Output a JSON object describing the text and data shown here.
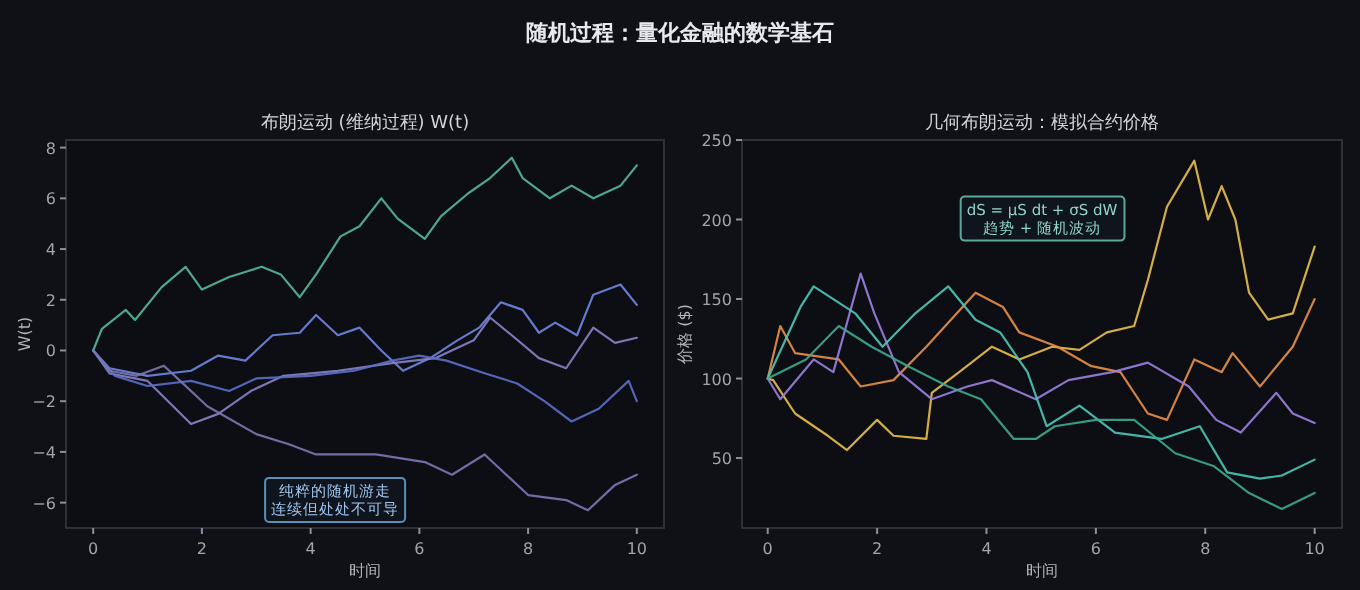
{
  "chart_data": [
    {
      "type": "line",
      "title": "布朗运动 (维纳过程) W(t)",
      "xlabel": "时间",
      "ylabel": "W(t)",
      "xlim": [
        -0.5,
        10.5
      ],
      "ylim": [
        -7,
        8.3
      ],
      "xticks": [
        0,
        2,
        4,
        6,
        8,
        10
      ],
      "yticks": [
        -6,
        -4,
        -2,
        0,
        2,
        4,
        6,
        8
      ],
      "annotations": [
        "随机过程：量化金融的数学基石",
        "纯粹的随机游走",
        "连续但处处不可导"
      ],
      "series": [
        {
          "color": "#55b89a",
          "x": [
            0,
            0.16,
            0.6,
            0.77,
            1.26,
            1.7,
            2.0,
            2.5,
            3.1,
            3.45,
            3.8,
            4.1,
            4.55,
            4.9,
            5.3,
            5.6,
            6.1,
            6.4,
            6.9,
            7.3,
            7.7,
            7.9,
            8.4,
            8.8,
            9.2,
            9.7,
            10
          ],
          "values": [
            0,
            0.85,
            1.6,
            1.2,
            2.5,
            3.3,
            2.4,
            2.9,
            3.3,
            3.0,
            2.1,
            3.0,
            4.5,
            4.9,
            6.0,
            5.2,
            4.4,
            5.3,
            6.2,
            6.8,
            7.6,
            6.8,
            6.0,
            6.5,
            6.0,
            6.5,
            7.3
          ]
        },
        {
          "color": "#6f86e0",
          "x": [
            0,
            0.3,
            1.0,
            1.8,
            2.3,
            2.8,
            3.3,
            3.8,
            4.1,
            4.5,
            4.9,
            5.3,
            5.7,
            6.2,
            6.7,
            7.1,
            7.5,
            7.9,
            8.2,
            8.5,
            8.9,
            9.2,
            9.7,
            10
          ],
          "values": [
            0,
            -0.7,
            -1.0,
            -0.8,
            -0.2,
            -0.4,
            0.6,
            0.7,
            1.4,
            0.6,
            0.9,
            0,
            -0.8,
            -0.3,
            0.4,
            0.9,
            1.9,
            1.6,
            0.7,
            1.1,
            0.6,
            2.2,
            2.6,
            1.8
          ]
        },
        {
          "color": "#8a82c8",
          "x": [
            0,
            0.3,
            1.0,
            1.8,
            2.3,
            2.9,
            3.5,
            4.5,
            5.5,
            6.3,
            7.0,
            7.3,
            7.7,
            8.2,
            8.7,
            9.2,
            9.6,
            10
          ],
          "values": [
            0,
            -0.9,
            -1.2,
            -2.9,
            -2.5,
            -1.6,
            -1.0,
            -0.8,
            -0.5,
            -0.3,
            0.4,
            1.3,
            0.6,
            -0.3,
            -0.7,
            0.9,
            0.3,
            0.5
          ]
        },
        {
          "color": "#5c6fc8",
          "x": [
            0,
            0.4,
            1.0,
            1.8,
            2.5,
            3.0,
            4.0,
            4.8,
            5.5,
            6.0,
            6.5,
            7.2,
            7.8,
            8.3,
            8.8,
            9.3,
            9.85,
            10
          ],
          "values": [
            0,
            -1.0,
            -1.4,
            -1.2,
            -1.6,
            -1.1,
            -1.0,
            -0.8,
            -0.4,
            -0.2,
            -0.4,
            -0.9,
            -1.3,
            -2.0,
            -2.8,
            -2.3,
            -1.2,
            -2.0
          ]
        },
        {
          "color": "#7a78b4",
          "x": [
            0,
            0.3,
            0.8,
            1.3,
            1.6,
            2.1,
            3.0,
            3.6,
            4.1,
            5.2,
            6.1,
            6.6,
            7.2,
            8.0,
            8.7,
            9.1,
            9.6,
            10
          ],
          "values": [
            0,
            -0.8,
            -1.0,
            -0.6,
            -1.2,
            -2.2,
            -3.3,
            -3.7,
            -4.1,
            -4.1,
            -4.4,
            -4.9,
            -4.1,
            -5.7,
            -5.9,
            -6.3,
            -5.3,
            -4.9
          ]
        }
      ]
    },
    {
      "type": "line",
      "title": "几何布朗运动：模拟合约价格",
      "xlabel": "时间",
      "ylabel": "价格 ($)",
      "xlim": [
        -0.47,
        10.5
      ],
      "ylim": [
        6,
        250
      ],
      "xticks": [
        0,
        2,
        4,
        6,
        8,
        10
      ],
      "yticks": [
        50,
        100,
        150,
        200,
        250
      ],
      "annotations": [
        "dS = μS dt + σS dW\n趋势 + 随机波动"
      ],
      "series": [
        {
          "color": "#e8c04a",
          "x": [
            0,
            0.1,
            0.5,
            1.1,
            1.45,
            2.0,
            2.3,
            2.9,
            3.0,
            3.5,
            4.1,
            4.6,
            5.2,
            5.7,
            6.2,
            6.7,
            6.95,
            7.3,
            7.8,
            8.05,
            8.3,
            8.55,
            8.8,
            9.15,
            9.6,
            10
          ],
          "values": [
            100,
            99,
            78,
            64,
            55,
            74,
            64,
            62,
            91,
            104,
            120,
            112,
            120,
            118,
            129,
            133,
            162,
            208,
            237,
            200,
            221,
            200,
            154,
            137,
            141,
            183
          ]
        },
        {
          "color": "#e89048",
          "x": [
            0,
            0.23,
            0.5,
            1.3,
            1.7,
            2.3,
            2.9,
            3.8,
            4.3,
            4.6,
            5.3,
            5.9,
            6.45,
            6.95,
            7.3,
            7.8,
            8.3,
            8.5,
            9.0,
            9.6,
            10
          ],
          "values": [
            100,
            133,
            116,
            112,
            95,
            99,
            120,
            154,
            145,
            129,
            120,
            108,
            104,
            78,
            74,
            112,
            104,
            116,
            95,
            120,
            150
          ]
        },
        {
          "color": "#9b80e0",
          "x": [
            0,
            0.23,
            0.84,
            1.2,
            1.7,
            1.95,
            2.4,
            3.0,
            3.65,
            4.1,
            4.9,
            5.5,
            6.3,
            6.95,
            7.7,
            8.2,
            8.65,
            9.3,
            9.6,
            10
          ],
          "values": [
            100,
            87,
            112,
            104,
            166,
            141,
            104,
            87,
            95,
            99,
            87,
            99,
            104,
            110,
            95,
            74,
            66,
            91,
            78,
            72
          ]
        },
        {
          "color": "#4cc8b8",
          "x": [
            0,
            0.6,
            0.84,
            1.6,
            2.1,
            2.7,
            3.3,
            3.8,
            4.25,
            4.75,
            5.1,
            5.7,
            6.35,
            7.2,
            7.9,
            8.4,
            9.0,
            9.4,
            10
          ],
          "values": [
            100,
            145,
            158,
            141,
            120,
            141,
            158,
            137,
            129,
            104,
            70,
            83,
            66,
            62,
            70,
            41,
            37,
            39,
            49
          ]
        },
        {
          "color": "#3fa88e",
          "x": [
            0,
            0.7,
            1.3,
            1.9,
            2.55,
            3.3,
            3.9,
            4.5,
            4.9,
            5.25,
            6.0,
            6.7,
            7.45,
            8.15,
            8.8,
            9.4,
            10
          ],
          "values": [
            100,
            112,
            133,
            120,
            108,
            95,
            87,
            62,
            62,
            70,
            74,
            74,
            53,
            45,
            28,
            18,
            28
          ]
        }
      ]
    }
  ]
}
